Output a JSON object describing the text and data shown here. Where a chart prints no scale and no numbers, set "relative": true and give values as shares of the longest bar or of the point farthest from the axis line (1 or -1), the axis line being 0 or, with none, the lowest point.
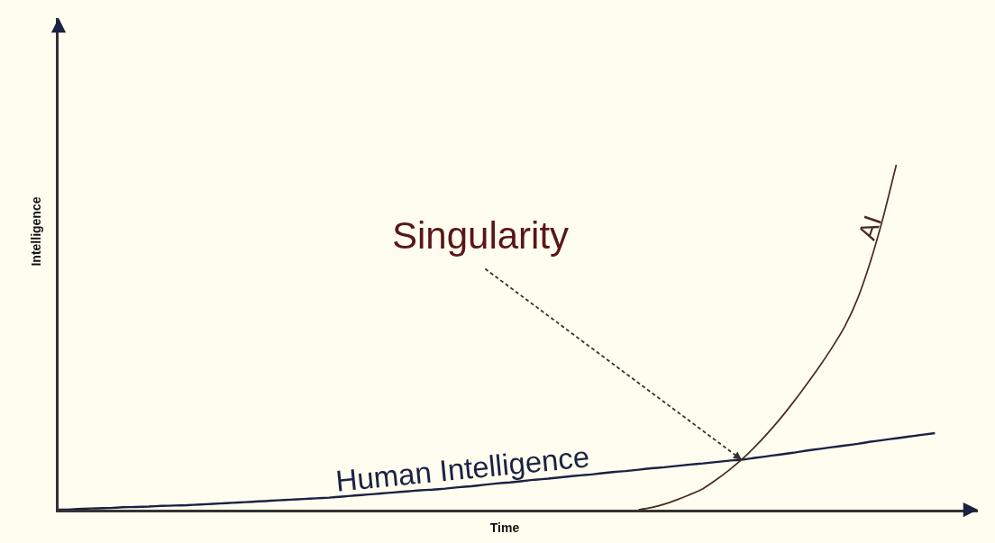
{
  "chart_data": {
    "type": "line",
    "relative": true,
    "xlabel": "Time",
    "ylabel": "Intelligence",
    "legend": false,
    "grid": false,
    "categories": [
      null,
      null,
      null,
      null,
      null,
      null,
      null,
      null,
      null,
      null,
      null,
      null,
      null,
      null,
      null,
      null,
      null,
      null,
      null,
      null,
      null,
      null,
      null,
      null,
      null,
      null,
      null,
      null,
      null,
      null,
      null,
      null,
      null,
      null,
      null,
      null,
      null,
      null,
      null,
      null,
      null,
      null,
      null,
      null,
      null,
      null,
      null,
      null,
      null,
      null,
      null,
      null,
      null,
      null,
      null,
      null,
      null,
      null,
      null,
      null,
      null,
      null,
      null,
      null,
      null,
      null,
      null,
      null,
      null
    ],
    "series": [
      {
        "name": "Human Intelligence",
        "color": "#1b2242",
        "values": [
          0,
          0.001,
          0.003,
          0.004,
          0.005,
          0.007,
          0.008,
          0.009,
          0.011,
          0.012,
          0.013,
          0.015,
          0.017,
          0.019,
          0.021,
          0.023,
          0.025,
          0.027,
          0.029,
          0.031,
          0.033,
          0.035,
          0.038,
          0.041,
          0.044,
          0.047,
          0.05,
          0.053,
          0.056,
          0.058,
          0.061,
          0.065,
          0.068,
          0.072,
          0.076,
          0.079,
          0.083,
          0.087,
          0.09,
          0.094,
          0.098,
          0.101,
          0.105,
          0.109,
          0.112,
          0.116,
          0.12,
          0.123,
          0.127,
          0.131,
          0.134,
          0.138,
          0.142,
          0.145,
          0.15,
          0.155,
          0.16,
          0.165,
          0.171,
          0.176,
          0.181,
          0.186,
          0.191,
          0.197,
          0.202,
          0.207,
          0.212,
          0.217,
          0.222
        ]
      },
      {
        "name": "AI",
        "color": "#4a2a1e",
        "values": [
          null,
          null,
          null,
          null,
          null,
          null,
          null,
          null,
          null,
          null,
          null,
          null,
          null,
          null,
          null,
          null,
          null,
          null,
          null,
          null,
          null,
          null,
          null,
          null,
          null,
          null,
          null,
          null,
          null,
          null,
          null,
          null,
          null,
          null,
          null,
          null,
          null,
          null,
          null,
          null,
          null,
          null,
          null,
          null,
          null,
          0,
          0.006,
          0.016,
          0.029,
          0.044,
          0.061,
          0.086,
          0.114,
          0.145,
          0.181,
          0.221,
          0.264,
          0.311,
          0.361,
          0.413,
          0.469,
          0.531,
          0.612,
          0.72,
          0.85,
          1,
          null,
          null,
          null
        ]
      }
    ],
    "annotations": [
      "Singularity"
    ]
  }
}
